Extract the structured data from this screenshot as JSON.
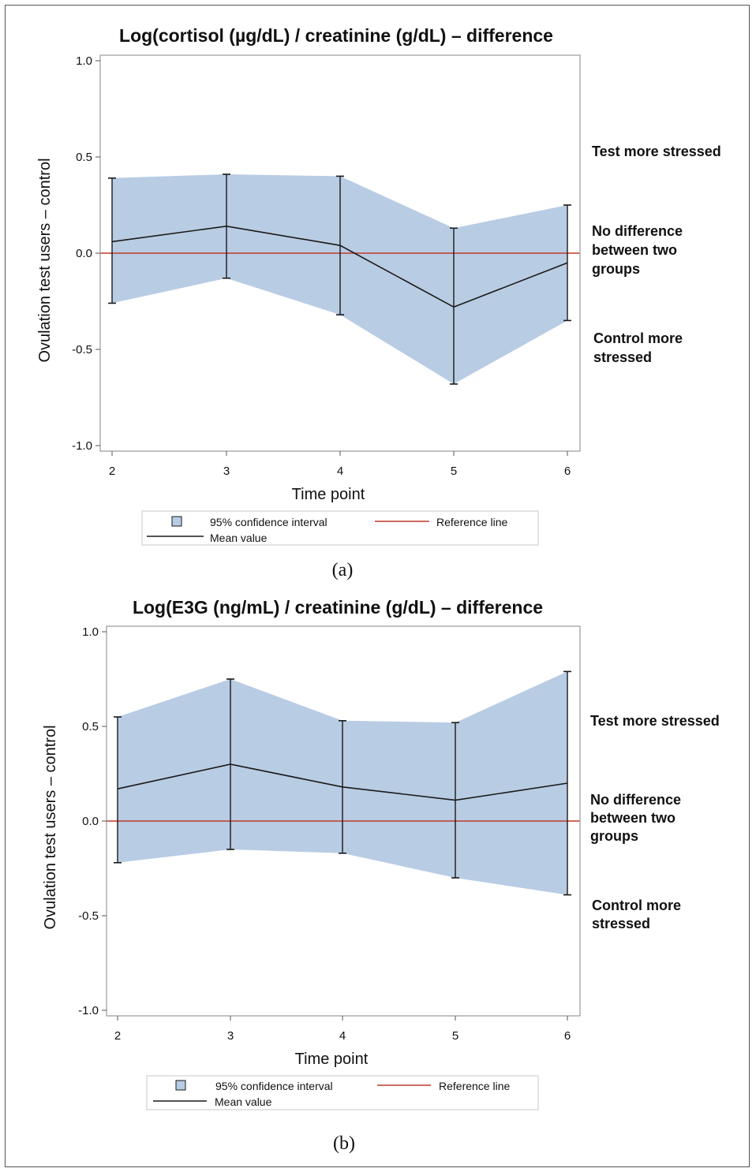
{
  "figure": {
    "panels": [
      {
        "caption": "(a)",
        "side_labels": {
          "top": [
            "Test more stressed"
          ],
          "mid": [
            "No difference",
            "between two",
            "groups"
          ],
          "bottom": [
            "Control more",
            "stressed"
          ]
        },
        "legend": {
          "ci": "95% confidence interval",
          "ref": "Reference line",
          "mean": "Mean value"
        }
      },
      {
        "caption": "(b)",
        "side_labels": {
          "top": [
            "Test more stressed"
          ],
          "mid": [
            "No difference",
            "between two",
            "groups"
          ],
          "bottom": [
            "Control more",
            "stressed"
          ]
        },
        "legend": {
          "ci": "95% confidence interval",
          "ref": "Reference line",
          "mean": "Mean value"
        }
      }
    ]
  },
  "chart_data": [
    {
      "type": "line",
      "title": "Log(cortisol (µg/dL) / creatinine (g/dL) – difference",
      "xlabel": "Time point",
      "ylabel": "Ovulation test users – control",
      "x": [
        2,
        3,
        4,
        5,
        6
      ],
      "ylim": [
        -1.0,
        1.0
      ],
      "yticks": [
        "1.0",
        "0.5",
        "0.0",
        "-0.5",
        "-1.0"
      ],
      "series": [
        {
          "name": "Mean value",
          "values": [
            0.06,
            0.14,
            0.04,
            -0.28,
            -0.05
          ]
        },
        {
          "name": "95% confidence interval",
          "lower": [
            -0.26,
            -0.13,
            -0.32,
            -0.68,
            -0.35
          ],
          "upper": [
            0.39,
            0.41,
            0.4,
            0.13,
            0.25
          ]
        }
      ],
      "reference_line": 0.0,
      "colors": {
        "ci_fill": "#b8cce4",
        "reference": "#c0392b",
        "mean": "#1a1a1a"
      },
      "grid": false,
      "legend_position": "bottom"
    },
    {
      "type": "line",
      "title": "Log(E3G (ng/mL) / creatinine (g/dL) – difference",
      "xlabel": "Time point",
      "ylabel": "Ovulation test users – control",
      "x": [
        2,
        3,
        4,
        5,
        6
      ],
      "ylim": [
        -1.0,
        1.0
      ],
      "yticks": [
        "1.0",
        "0.5",
        "0.0",
        "-0.5",
        "-1.0"
      ],
      "series": [
        {
          "name": "Mean value",
          "values": [
            0.17,
            0.3,
            0.18,
            0.11,
            0.2
          ]
        },
        {
          "name": "95% confidence interval",
          "lower": [
            -0.22,
            -0.15,
            -0.17,
            -0.3,
            -0.39
          ],
          "upper": [
            0.55,
            0.75,
            0.53,
            0.52,
            0.79
          ]
        }
      ],
      "reference_line": 0.0,
      "colors": {
        "ci_fill": "#b8cce4",
        "reference": "#c0392b",
        "mean": "#1a1a1a"
      },
      "grid": false,
      "legend_position": "bottom"
    }
  ]
}
